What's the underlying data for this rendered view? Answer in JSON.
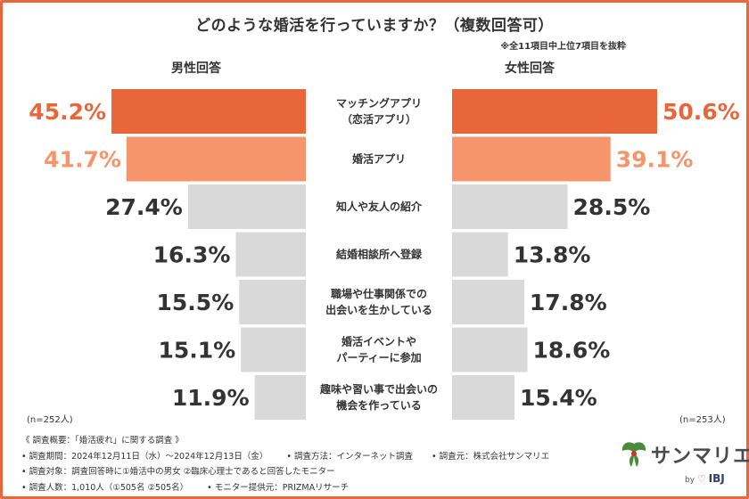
{
  "title": "どのような婚活を行っていますか？（複数回答可）",
  "note": "※全11項目中上位7項目を抜粋",
  "male_header": "男性回答",
  "female_header": "女性回答",
  "male_n": "(n=252人)",
  "female_n": "(n=253人)",
  "colors": {
    "top": "#e8663a",
    "second": "#f6956b",
    "rest": "#d9d9d9",
    "label_top": "#e8663a",
    "label_second": "#f6956b",
    "label_rest": "#333333"
  },
  "chart_data": {
    "type": "bar",
    "orientation": "horizontal-butterfly",
    "title": "どのような婚活を行っていますか？（複数回答可）",
    "categories": [
      [
        "マッチングアプリ",
        "（恋活アプリ）"
      ],
      [
        "婚活アプリ"
      ],
      [
        "知人や友人の紹介"
      ],
      [
        "結婚相談所へ登録"
      ],
      [
        "職場や仕事関係での",
        "出会いを生かしている"
      ],
      [
        "婚活イベントや",
        "パーティーに参加"
      ],
      [
        "趣味や習い事で出会いの",
        "機会を作っている"
      ]
    ],
    "series": [
      {
        "name": "男性回答",
        "values": [
          45.2,
          41.7,
          27.4,
          16.3,
          15.5,
          15.1,
          11.9
        ]
      },
      {
        "name": "女性回答",
        "values": [
          50.6,
          39.1,
          28.5,
          13.8,
          17.8,
          18.6,
          15.4
        ]
      }
    ],
    "unit": "%",
    "xlim": [
      0,
      50.6
    ]
  },
  "footer": {
    "line1": "《 調査概要：「婚活疲れ」に関する調査 》",
    "line2a": "• 調査期間：2024年12月11日（水）～2024年12月13日（金）",
    "line2b": "• 調査方法：インターネット調査",
    "line2c": "• 調査元：株式会社サンマリエ",
    "line3": "• 調査対象：調査回答時に①婚活中の男女 ②臨床心理士であると回答したモニター",
    "line4a": "• 調査人数：1,010人（①505名 ②505名）",
    "line4b": "• モニター提供元：PRIZMAリサーチ"
  },
  "logo": {
    "name": "サンマリエ",
    "by": "by",
    "ibj": "IBJ",
    "heart": "♡"
  }
}
